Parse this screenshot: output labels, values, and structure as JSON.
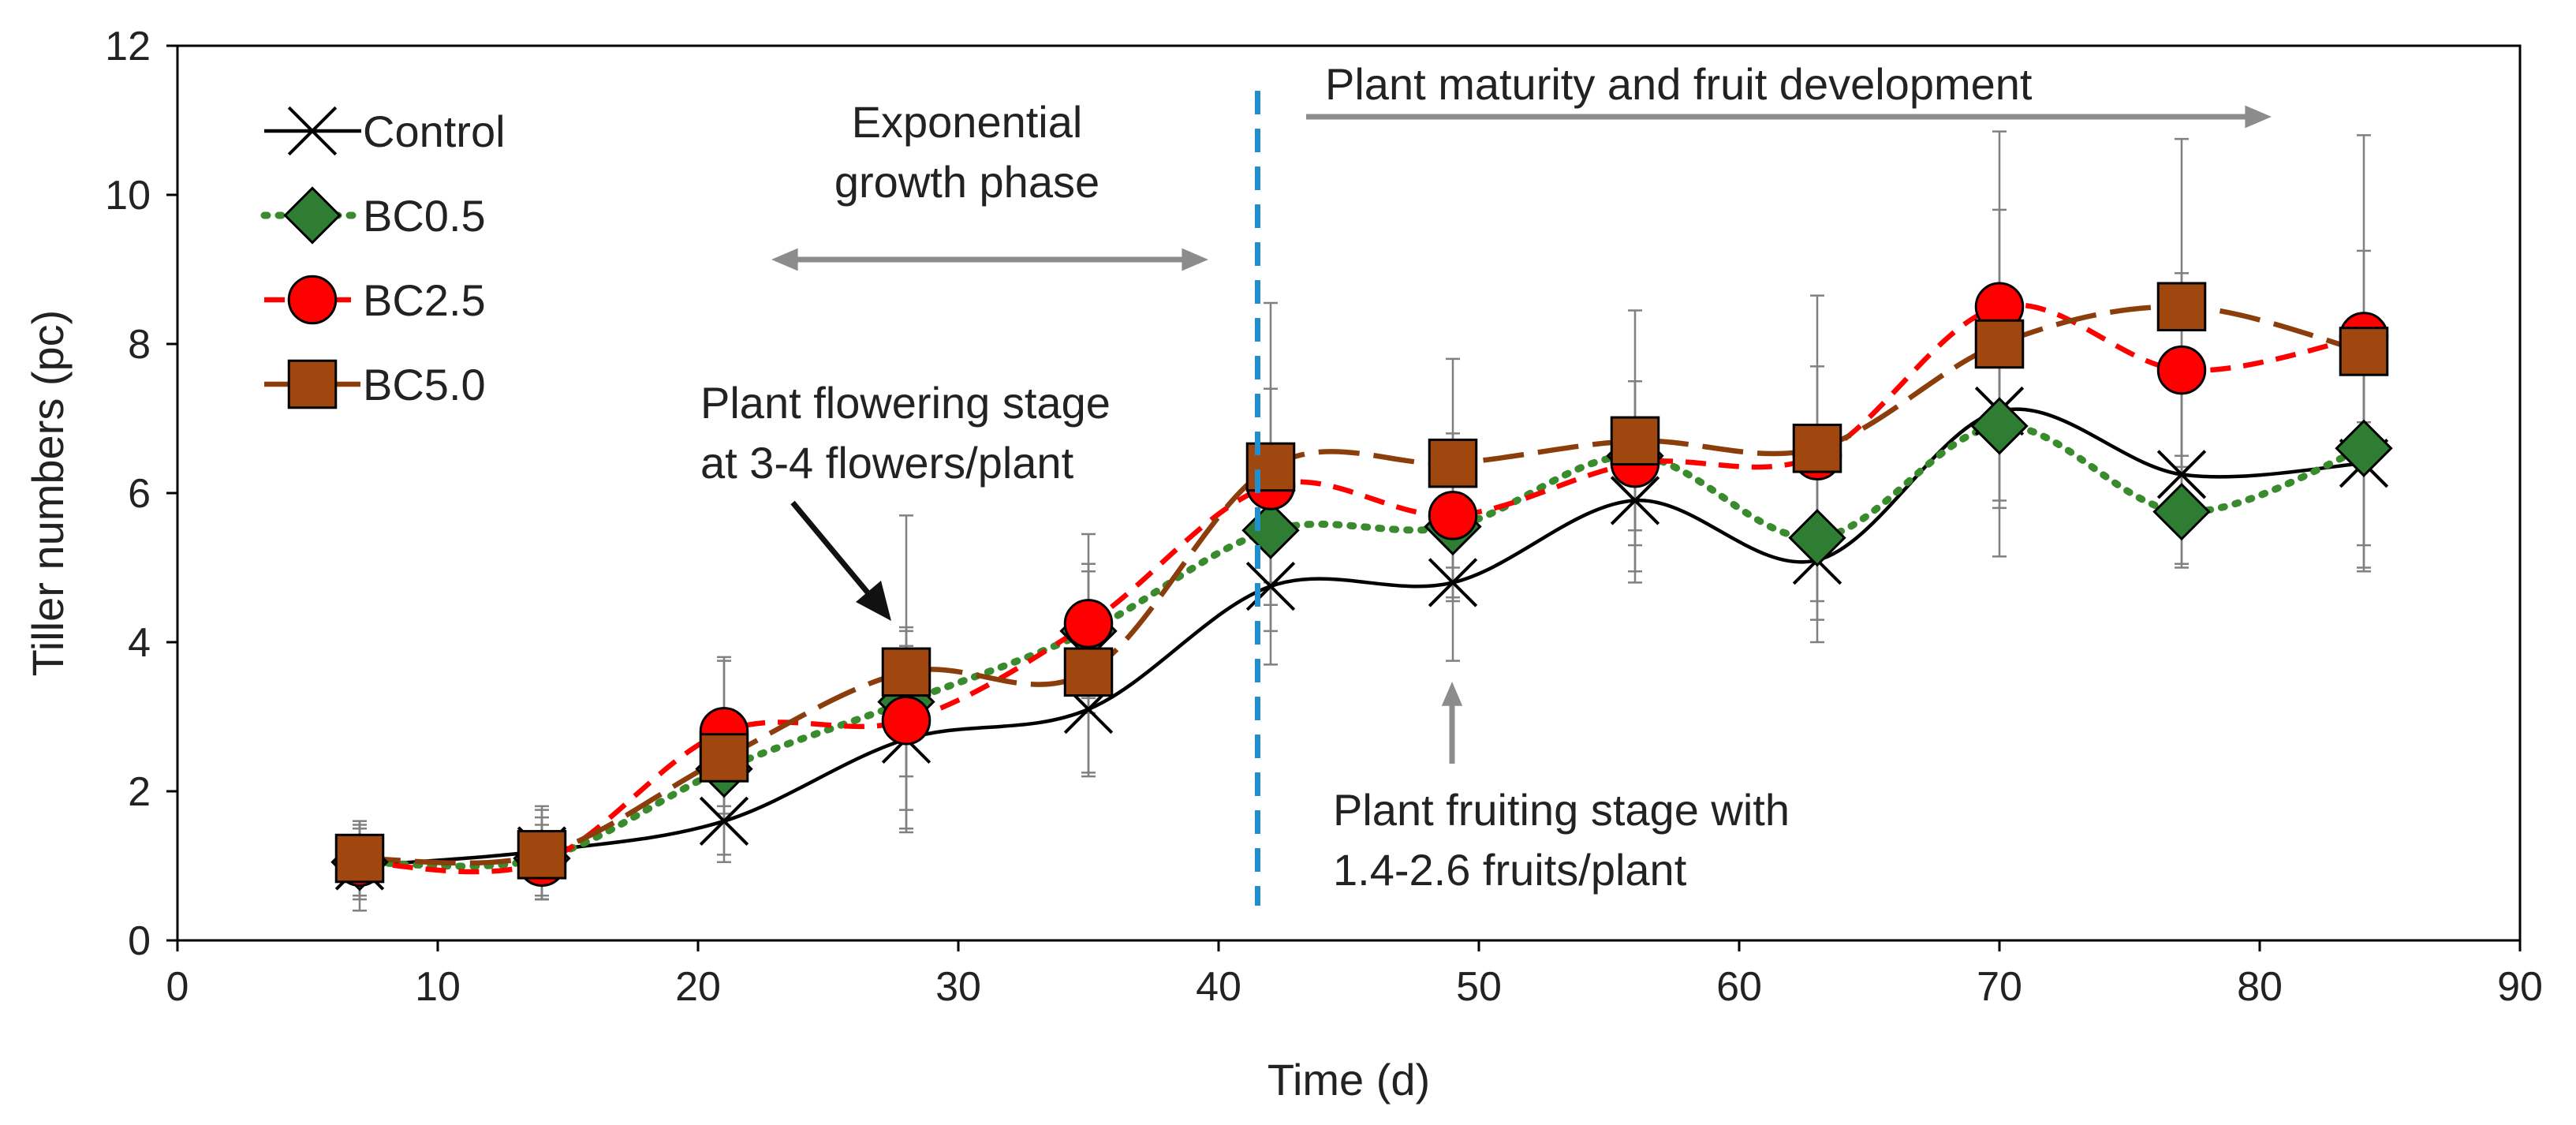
{
  "chart_data": {
    "type": "line",
    "title": "",
    "xlabel": "Time (d)",
    "ylabel": "Tiller numbers (pc)",
    "xlim": [
      0,
      90
    ],
    "ylim": [
      0,
      12
    ],
    "xticks": [
      0,
      10,
      20,
      30,
      40,
      50,
      60,
      70,
      80,
      90
    ],
    "yticks": [
      0,
      2,
      4,
      6,
      8,
      10,
      12
    ],
    "grid": false,
    "legend_position": "top-left",
    "x": [
      7,
      14,
      21,
      28,
      35,
      42,
      49,
      56,
      63,
      70,
      77,
      84
    ],
    "series": [
      {
        "name": "Control",
        "marker": "x",
        "line": "solid",
        "color": "#000000",
        "values": [
          1.0,
          1.2,
          1.6,
          2.7,
          3.1,
          4.75,
          4.8,
          5.9,
          5.1,
          7.1,
          6.25,
          6.4
        ],
        "errors": [
          0.6,
          0.6,
          0.55,
          1.25,
          0.9,
          1.05,
          1.05,
          1.1,
          1.1,
          1.2,
          1.2,
          1.45
        ]
      },
      {
        "name": "BC0.5",
        "marker": "diamond",
        "line": "dotted",
        "color": "#3a8a2e",
        "fill": "#2e7d32",
        "values": [
          1.05,
          1.1,
          2.3,
          3.2,
          4.15,
          5.5,
          5.55,
          6.5,
          5.4,
          6.9,
          5.75,
          6.6
        ],
        "errors": [
          0.5,
          0.55,
          0.6,
          1.0,
          0.9,
          1.0,
          1.0,
          1.0,
          1.1,
          1.1,
          0.75,
          1.3
        ]
      },
      {
        "name": "BC2.5",
        "marker": "circle",
        "line": "dashed",
        "color": "#ff0000",
        "fill": "#ff0000",
        "values": [
          1.05,
          1.05,
          2.8,
          2.95,
          4.25,
          6.1,
          5.7,
          6.4,
          6.5,
          8.5,
          7.65,
          8.1
        ],
        "errors": [
          0.45,
          0.5,
          1.0,
          1.2,
          1.2,
          1.3,
          1.1,
          1.1,
          1.2,
          1.3,
          1.3,
          1.15
        ]
      },
      {
        "name": "BC5.0",
        "marker": "square",
        "line": "long-dash",
        "color": "#8b3d0b",
        "fill": "#a0460f",
        "values": [
          1.1,
          1.15,
          2.45,
          3.6,
          3.6,
          6.35,
          6.4,
          6.7,
          6.6,
          8.0,
          8.5,
          7.9
        ],
        "errors": [
          0.5,
          0.6,
          1.3,
          2.1,
          1.35,
          2.2,
          1.4,
          1.75,
          2.05,
          2.85,
          2.25,
          2.9
        ]
      }
    ],
    "annotations": [
      {
        "id": "growth",
        "lines": [
          "Exponential",
          "growth phase"
        ]
      },
      {
        "id": "maturity",
        "lines": [
          "Plant maturity and fruit development"
        ]
      },
      {
        "id": "flowering",
        "lines": [
          "Plant flowering stage",
          "at 3-4 flowers/plant"
        ]
      },
      {
        "id": "fruiting",
        "lines": [
          "Plant fruiting stage with",
          "1.4-2.6 fruits/plant"
        ]
      }
    ],
    "phase_divider_x": 41.5
  }
}
